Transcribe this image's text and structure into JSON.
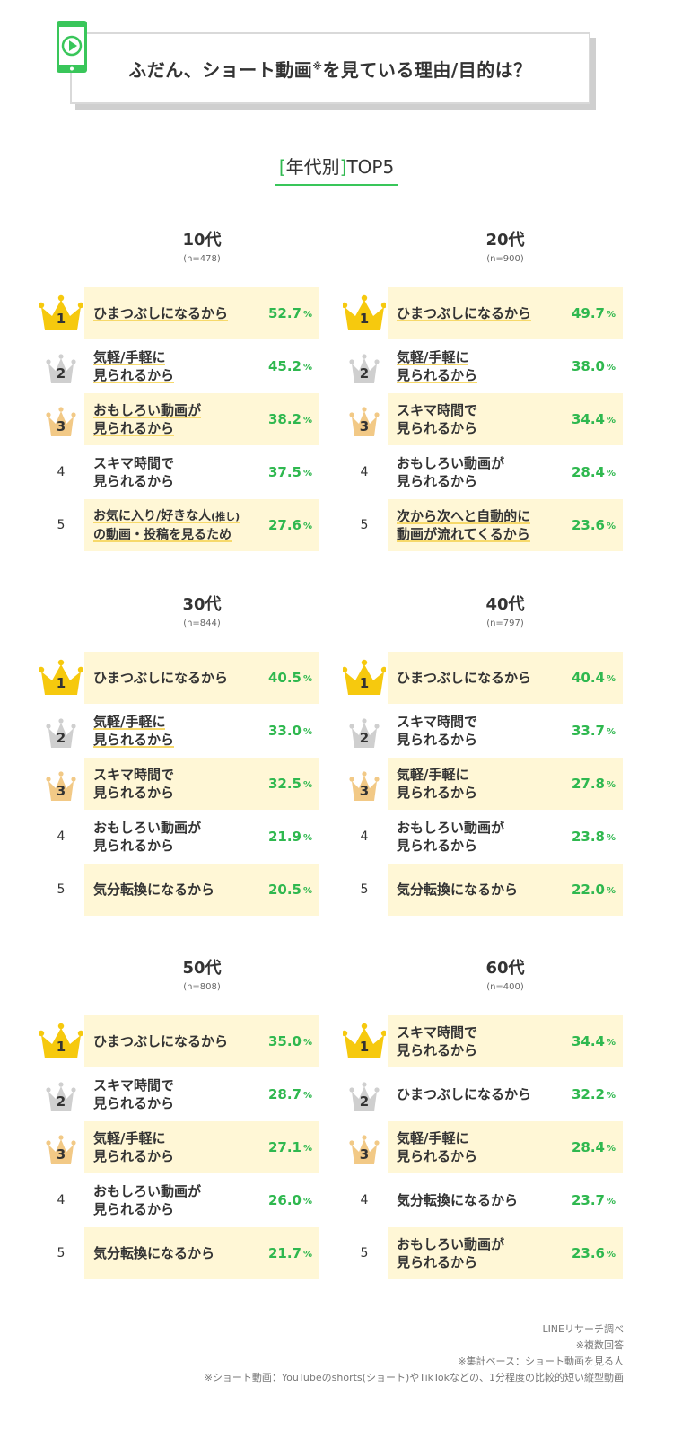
{
  "header": {
    "title": "ふだん、ショート動画",
    "title_mark": "※",
    "title_rest": "を見ている理由/目的は？",
    "icon": "phone-play-icon"
  },
  "subtitle": {
    "bracket_open": "[",
    "label": "年代別",
    "bracket_close": "]",
    "top": "TOP5"
  },
  "colors": {
    "accent_green": "#2fb84f",
    "highlight_bg": "#fff7d6",
    "gold": "#f6c90e",
    "silver": "#cfcfcf",
    "bronze": "#f2c986"
  },
  "chart_data": {
    "type": "table",
    "percent_unit": "%",
    "groups": [
      {
        "age": "10代",
        "n": "(n=478)",
        "items": [
          {
            "rank": "1",
            "reason": [
              "ひまつぶしになるから"
            ],
            "value": "52.7",
            "highlight": true,
            "underline": true
          },
          {
            "rank": "2",
            "reason": [
              "気軽/手軽に",
              "見られるから"
            ],
            "value": "45.2",
            "highlight": false,
            "underline": true
          },
          {
            "rank": "3",
            "reason": [
              "おもしろい動画が",
              "見られるから"
            ],
            "value": "38.2",
            "highlight": true,
            "underline": true
          },
          {
            "rank": "4",
            "reason": [
              "スキマ時間で",
              "見られるから"
            ],
            "value": "37.5",
            "highlight": false,
            "underline": false
          },
          {
            "rank": "5",
            "reason": [
              "お気に入り/好きな人(推し)",
              "の動画・投稿を見るため"
            ],
            "value": "27.6",
            "highlight": true,
            "underline": true
          }
        ]
      },
      {
        "age": "20代",
        "n": "(n=900)",
        "items": [
          {
            "rank": "1",
            "reason": [
              "ひまつぶしになるから"
            ],
            "value": "49.7",
            "highlight": true,
            "underline": true
          },
          {
            "rank": "2",
            "reason": [
              "気軽/手軽に",
              "見られるから"
            ],
            "value": "38.0",
            "highlight": false,
            "underline": true
          },
          {
            "rank": "3",
            "reason": [
              "スキマ時間で",
              "見られるから"
            ],
            "value": "34.4",
            "highlight": true,
            "underline": false
          },
          {
            "rank": "4",
            "reason": [
              "おもしろい動画が",
              "見られるから"
            ],
            "value": "28.4",
            "highlight": false,
            "underline": false
          },
          {
            "rank": "5",
            "reason": [
              "次から次へと自動的に",
              "動画が流れてくるから"
            ],
            "value": "23.6",
            "highlight": true,
            "underline": true
          }
        ]
      },
      {
        "age": "30代",
        "n": "(n=844)",
        "items": [
          {
            "rank": "1",
            "reason": [
              "ひまつぶしになるから"
            ],
            "value": "40.5",
            "highlight": true,
            "underline": false
          },
          {
            "rank": "2",
            "reason": [
              "気軽/手軽に",
              "見られるから"
            ],
            "value": "33.0",
            "highlight": false,
            "underline": true
          },
          {
            "rank": "3",
            "reason": [
              "スキマ時間で",
              "見られるから"
            ],
            "value": "32.5",
            "highlight": true,
            "underline": false
          },
          {
            "rank": "4",
            "reason": [
              "おもしろい動画が",
              "見られるから"
            ],
            "value": "21.9",
            "highlight": false,
            "underline": false
          },
          {
            "rank": "5",
            "reason": [
              "気分転換になるから"
            ],
            "value": "20.5",
            "highlight": true,
            "underline": false
          }
        ]
      },
      {
        "age": "40代",
        "n": "(n=797)",
        "items": [
          {
            "rank": "1",
            "reason": [
              "ひまつぶしになるから"
            ],
            "value": "40.4",
            "highlight": true,
            "underline": false
          },
          {
            "rank": "2",
            "reason": [
              "スキマ時間で",
              "見られるから"
            ],
            "value": "33.7",
            "highlight": false,
            "underline": false
          },
          {
            "rank": "3",
            "reason": [
              "気軽/手軽に",
              "見られるから"
            ],
            "value": "27.8",
            "highlight": true,
            "underline": false
          },
          {
            "rank": "4",
            "reason": [
              "おもしろい動画が",
              "見られるから"
            ],
            "value": "23.8",
            "highlight": false,
            "underline": false
          },
          {
            "rank": "5",
            "reason": [
              "気分転換になるから"
            ],
            "value": "22.0",
            "highlight": true,
            "underline": false
          }
        ]
      },
      {
        "age": "50代",
        "n": "(n=808)",
        "items": [
          {
            "rank": "1",
            "reason": [
              "ひまつぶしになるから"
            ],
            "value": "35.0",
            "highlight": true,
            "underline": false
          },
          {
            "rank": "2",
            "reason": [
              "スキマ時間で",
              "見られるから"
            ],
            "value": "28.7",
            "highlight": false,
            "underline": false
          },
          {
            "rank": "3",
            "reason": [
              "気軽/手軽に",
              "見られるから"
            ],
            "value": "27.1",
            "highlight": true,
            "underline": false
          },
          {
            "rank": "4",
            "reason": [
              "おもしろい動画が",
              "見られるから"
            ],
            "value": "26.0",
            "highlight": false,
            "underline": false
          },
          {
            "rank": "5",
            "reason": [
              "気分転換になるから"
            ],
            "value": "21.7",
            "highlight": true,
            "underline": false
          }
        ]
      },
      {
        "age": "60代",
        "n": "(n=400)",
        "items": [
          {
            "rank": "1",
            "reason": [
              "スキマ時間で",
              "見られるから"
            ],
            "value": "34.4",
            "highlight": true,
            "underline": false
          },
          {
            "rank": "2",
            "reason": [
              "ひまつぶしになるから"
            ],
            "value": "32.2",
            "highlight": false,
            "underline": false
          },
          {
            "rank": "3",
            "reason": [
              "気軽/手軽に",
              "見られるから"
            ],
            "value": "28.4",
            "highlight": true,
            "underline": false
          },
          {
            "rank": "4",
            "reason": [
              "気分転換になるから"
            ],
            "value": "23.7",
            "highlight": false,
            "underline": false
          },
          {
            "rank": "5",
            "reason": [
              "おもしろい動画が",
              "見られるから"
            ],
            "value": "23.6",
            "highlight": true,
            "underline": false
          }
        ]
      }
    ]
  },
  "notes": [
    "LINEリサーチ調べ",
    "※複数回答",
    "※集計ベース：ショート動画を見る人",
    "※ショート動画：YouTubeのshorts(ショート)やTikTokなどの、1分程度の比較的短い縦型動画"
  ]
}
